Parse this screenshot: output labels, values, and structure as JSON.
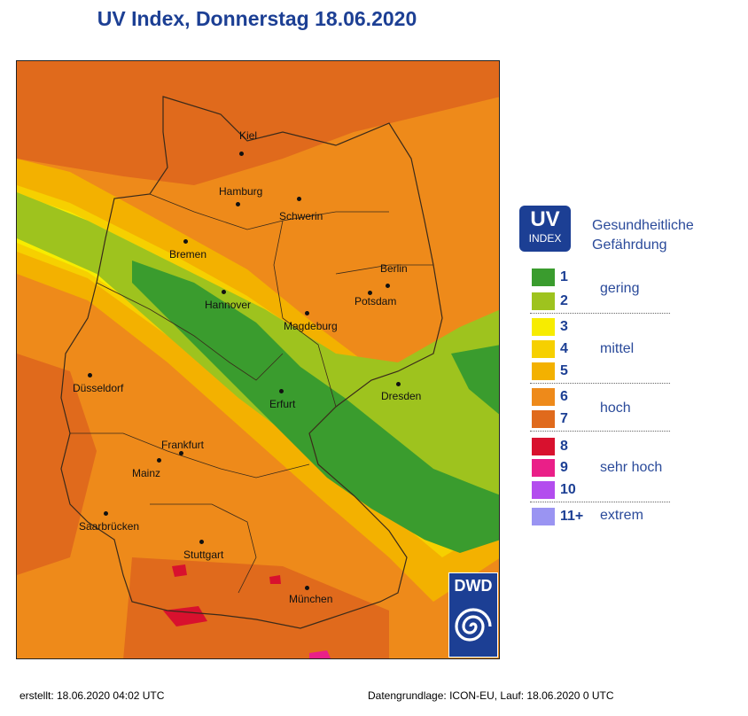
{
  "title": "UV Index, Donnerstag 18.06.2020",
  "legend": {
    "badge_main": "UV",
    "badge_sub": "INDEX",
    "header_line1": "Gesundheitliche",
    "header_line2": "Gefährdung",
    "levels": [
      {
        "value": "1",
        "color": "#3a9c2e"
      },
      {
        "value": "2",
        "color": "#9ec31e"
      },
      {
        "value": "3",
        "color": "#f7ec00"
      },
      {
        "value": "4",
        "color": "#f6d000"
      },
      {
        "value": "5",
        "color": "#f3b100"
      },
      {
        "value": "6",
        "color": "#ee8a1a"
      },
      {
        "value": "7",
        "color": "#e06a1c"
      },
      {
        "value": "8",
        "color": "#d8112e"
      },
      {
        "value": "9",
        "color": "#ea1f88"
      },
      {
        "value": "10",
        "color": "#b34dee"
      },
      {
        "value": "11+",
        "color": "#9a94f2"
      }
    ],
    "categories": [
      "gering",
      "mittel",
      "hoch",
      "sehr hoch",
      "extrem"
    ]
  },
  "cities": [
    "Kiel",
    "Hamburg",
    "Schwerin",
    "Bremen",
    "Berlin",
    "Potsdam",
    "Hannover",
    "Magdeburg",
    "Düsseldorf",
    "Erfurt",
    "Dresden",
    "Frankfurt",
    "Mainz",
    "Saarbrücken",
    "Stuttgart",
    "München"
  ],
  "logo_text": "DWD",
  "footer": {
    "created": "erstellt: 18.06.2020 04:02 UTC",
    "source": "Datengrundlage: ICON-EU, Lauf: 18.06.2020 0 UTC"
  }
}
